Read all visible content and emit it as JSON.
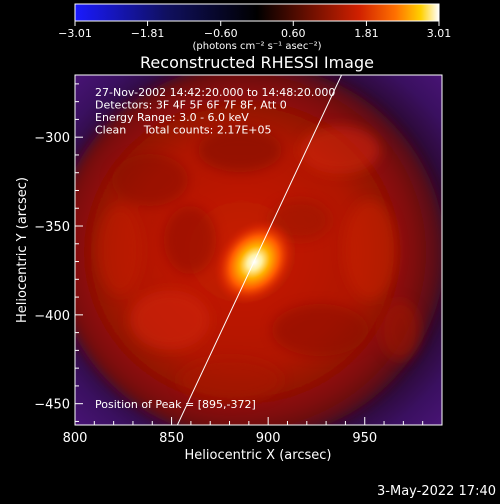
{
  "chart_data": {
    "type": "heatmap",
    "title": "Reconstructed RHESSI Image",
    "xlabel": "Heliocentric X (arcsec)",
    "ylabel": "Heliocentric Y (arcsec)",
    "xlim": [
      800,
      990
    ],
    "ylim": [
      -462,
      -265
    ],
    "x_ticks": [
      800,
      850,
      900,
      950
    ],
    "x_tick_labels": [
      "800",
      "850",
      "900",
      "950"
    ],
    "y_ticks": [
      -300,
      -350,
      -400,
      -450
    ],
    "y_tick_labels": [
      "−300",
      "−350",
      "−400",
      "−450"
    ],
    "colorbar": {
      "range": [
        -3.01,
        3.01
      ],
      "ticks": [
        -3.01,
        -1.81,
        -0.6,
        0.6,
        1.81,
        3.01
      ],
      "tick_labels": [
        "−3.01",
        "−1.81",
        "−0.60",
        "0.60",
        "1.81",
        "3.01"
      ],
      "units_label": "(photons cm⁻² s⁻¹ asec⁻²)",
      "colormap": "blue-black-red-yellow-white"
    },
    "annotations": [
      "27-Nov-2002 14:42:20.000 to 14:48:20.000",
      "Detectors: 3F 4F 5F 6F 7F 8F, Att 0",
      "Energy Range: 3.0 - 6.0 keV",
      "Clean     Total counts: 2.17E+05"
    ],
    "peak_label": "Position of Peak = [895,-372]",
    "peak": [
      895,
      -372
    ],
    "limb_line": [
      [
        853,
        -462
      ],
      [
        938,
        -265
      ]
    ],
    "grid": false
  },
  "footer": {
    "timestamp": "3-May-2022 17:40"
  },
  "colors": {
    "background": "#000000",
    "limb_line": "#ffffff",
    "low": "#0000ff",
    "mid_dark": "#000000",
    "mid_red": "#c01000",
    "high": "#ffffff"
  }
}
